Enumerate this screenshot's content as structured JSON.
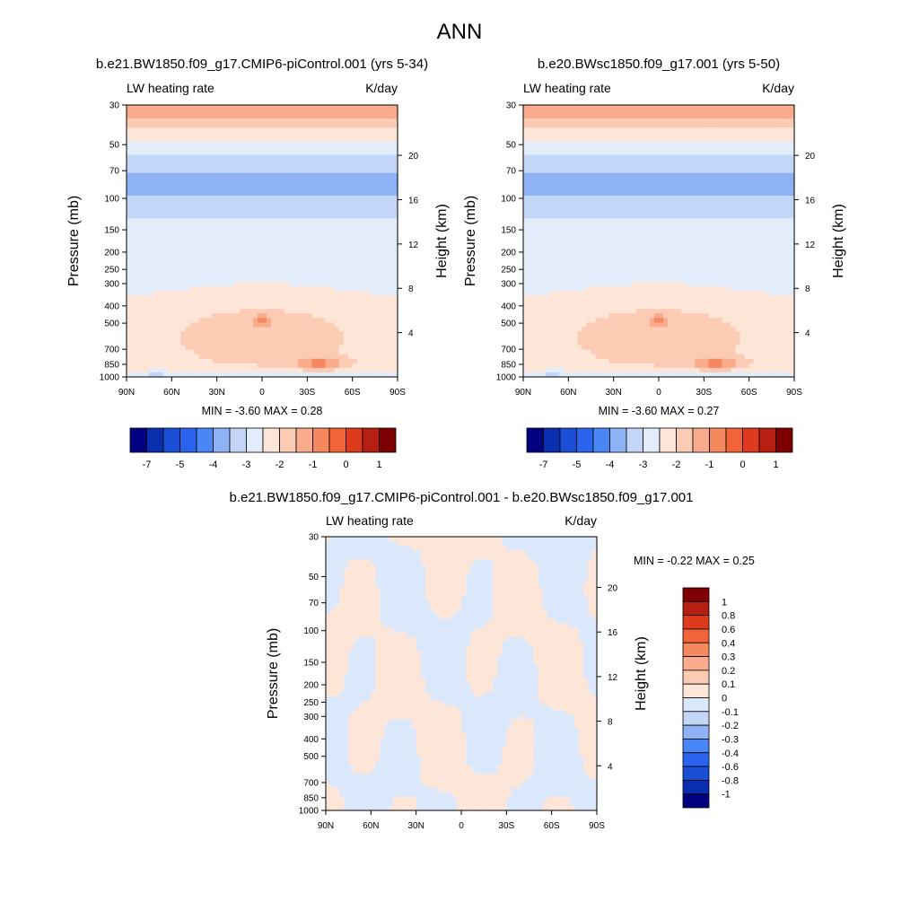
{
  "figure": {
    "title": "ANN"
  },
  "palettes": {
    "main": [
      "#000080",
      "#0a2fae",
      "#1a4fd6",
      "#2a64ee",
      "#4a87f5",
      "#8fb1f6",
      "#c4d6f8",
      "#e2ecfa",
      "#fde6d8",
      "#fccbb4",
      "#f9ab8e",
      "#f68860",
      "#f1643a",
      "#dd3a1e",
      "#b71f12",
      "#7f0000"
    ],
    "diff": [
      "#000080",
      "#0a2fae",
      "#1a4fd6",
      "#2a64ee",
      "#4a87f5",
      "#8fb1f6",
      "#c4d6f8",
      "#dbe8fc",
      "#fde6d8",
      "#fccbb4",
      "#f9ab8e",
      "#f68860",
      "#f1643a",
      "#dd3a1e",
      "#b71f12",
      "#7f0000"
    ]
  },
  "panels": [
    {
      "case": "b.e21.BW1850.f09_g17.CMIP6-piControl.001 (yrs 5-34)",
      "variable": "LW heating rate",
      "units": "K/day",
      "ylabel": "Pressure (mb)",
      "y2label": "Height (km)",
      "stats": "MIN =  -3.60  MAX =   0.28",
      "min": -3.6,
      "max": 0.28,
      "colorbar_labels": [
        "-7",
        "-5",
        "-4",
        "-3",
        "-2",
        "-1",
        "0",
        "1"
      ]
    },
    {
      "case": "b.e20.BWsc1850.f09_g17.001 (yrs 5-50)",
      "variable": "LW heating rate",
      "units": "K/day",
      "ylabel": "Pressure (mb)",
      "y2label": "Height (km)",
      "stats": "MIN =  -3.60  MAX =   0.27",
      "min": -3.6,
      "max": 0.27,
      "colorbar_labels": [
        "-7",
        "-5",
        "-4",
        "-3",
        "-2",
        "-1",
        "0",
        "1"
      ]
    },
    {
      "case": "b.e21.BW1850.f09_g17.CMIP6-piControl.001 - b.e20.BWsc1850.f09_g17.001",
      "variable": "LW heating rate",
      "units": "K/day",
      "ylabel": "Pressure (mb)",
      "y2label": "Height (km)",
      "stats": "MIN =  -0.22  MAX =   0.25",
      "min": -0.22,
      "max": 0.25,
      "colorbar_labels": [
        "1",
        "0.8",
        "0.6",
        "0.4",
        "0.3",
        "0.2",
        "0.1",
        "0",
        "-0.1",
        "-0.2",
        "-0.3",
        "-0.4",
        "-0.6",
        "-0.8",
        "-1"
      ]
    }
  ],
  "chart_data": [
    {
      "type": "heatmap",
      "title": "b.e21.BW1850.f09_g17.CMIP6-piControl.001 (yrs 5-34)",
      "variable": "LW heating rate",
      "units": "K/day",
      "x_ticks": [
        "90N",
        "60N",
        "30N",
        "0",
        "30S",
        "60S",
        "90S"
      ],
      "x_values": [
        90,
        60,
        30,
        0,
        -30,
        -60,
        -90
      ],
      "y_ticks": [
        "30",
        "50",
        "70",
        "100",
        "150",
        "200",
        "250",
        "300",
        "400",
        "500",
        "700",
        "850",
        "1000"
      ],
      "y_values": [
        30,
        50,
        70,
        100,
        150,
        200,
        250,
        300,
        400,
        500,
        700,
        850,
        1000
      ],
      "y2_ticks": [
        "20",
        "16",
        "12",
        "8",
        "4"
      ],
      "y2_values": [
        20,
        16,
        12,
        8,
        4
      ],
      "ylim": [
        1000,
        30
      ],
      "min": -3.6,
      "max": 0.28
    },
    {
      "type": "heatmap",
      "title": "b.e20.BWsc1850.f09_g17.001 (yrs 5-50)",
      "variable": "LW heating rate",
      "units": "K/day",
      "x_ticks": [
        "90N",
        "60N",
        "30N",
        "0",
        "30S",
        "60S",
        "90S"
      ],
      "x_values": [
        90,
        60,
        30,
        0,
        -30,
        -60,
        -90
      ],
      "y_ticks": [
        "30",
        "50",
        "70",
        "100",
        "150",
        "200",
        "250",
        "300",
        "400",
        "500",
        "700",
        "850",
        "1000"
      ],
      "y_values": [
        30,
        50,
        70,
        100,
        150,
        200,
        250,
        300,
        400,
        500,
        700,
        850,
        1000
      ],
      "y2_ticks": [
        "20",
        "16",
        "12",
        "8",
        "4"
      ],
      "y2_values": [
        20,
        16,
        12,
        8,
        4
      ],
      "ylim": [
        1000,
        30
      ],
      "min": -3.6,
      "max": 0.27
    },
    {
      "type": "heatmap",
      "title": "b.e21.BW1850.f09_g17.CMIP6-piControl.001 - b.e20.BWsc1850.f09_g17.001",
      "variable": "LW heating rate",
      "units": "K/day",
      "x_ticks": [
        "90N",
        "60N",
        "30N",
        "0",
        "30S",
        "60S",
        "90S"
      ],
      "x_values": [
        90,
        60,
        30,
        0,
        -30,
        -60,
        -90
      ],
      "y_ticks": [
        "30",
        "50",
        "70",
        "100",
        "150",
        "200",
        "250",
        "300",
        "400",
        "500",
        "700",
        "850",
        "1000"
      ],
      "y_values": [
        30,
        50,
        70,
        100,
        150,
        200,
        250,
        300,
        400,
        500,
        700,
        850,
        1000
      ],
      "y2_ticks": [
        "20",
        "16",
        "12",
        "8",
        "4"
      ],
      "y2_values": [
        20,
        16,
        12,
        8,
        4
      ],
      "ylim": [
        1000,
        30
      ],
      "min": -0.22,
      "max": 0.25
    }
  ]
}
